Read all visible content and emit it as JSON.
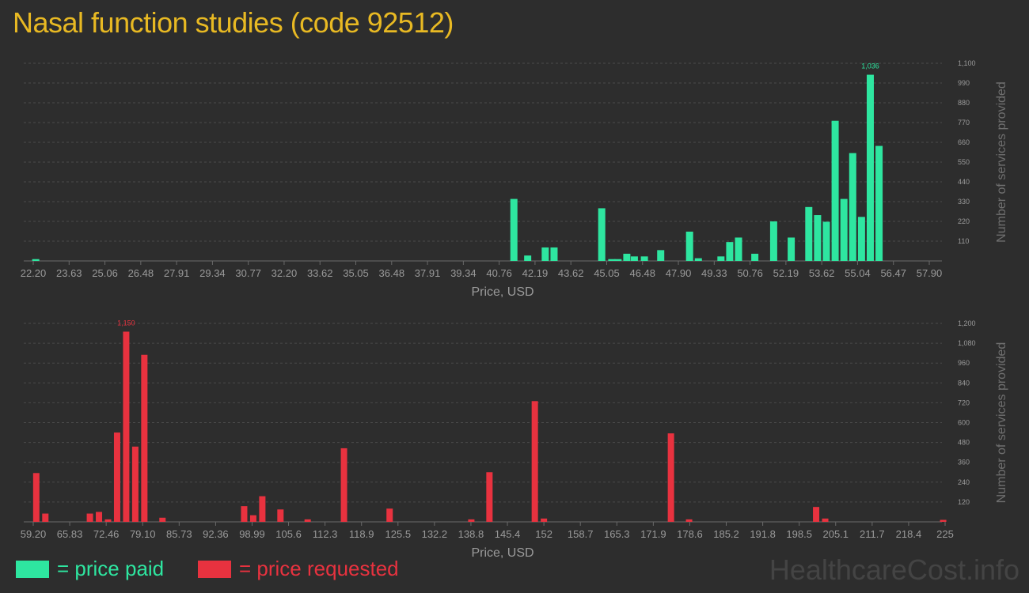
{
  "title": "Nasal function studies (code 92512)",
  "colors": {
    "paid": "#2ee6a0",
    "requested": "#e8323f",
    "title": "#e8b923",
    "background": "#2d2d2d",
    "grid": "#4a4a4a",
    "text": "#9a9a9a"
  },
  "legend": {
    "paid_label": "= price paid",
    "requested_label": "= price requested"
  },
  "watermark": "HealthcareCost.info",
  "chart_data": [
    {
      "type": "bar",
      "name": "price paid",
      "color": "#2ee6a0",
      "xlabel": "Price, USD",
      "ylabel": "Number of services provided",
      "x_range": [
        22.2,
        57.9
      ],
      "x_ticks": [
        "22.20",
        "23.63",
        "25.06",
        "26.48",
        "27.91",
        "29.34",
        "30.77",
        "32.20",
        "33.62",
        "35.05",
        "36.48",
        "37.91",
        "39.34",
        "40.76",
        "42.19",
        "43.62",
        "45.05",
        "46.48",
        "47.90",
        "49.33",
        "50.76",
        "52.19",
        "53.62",
        "55.04",
        "56.47",
        "57.90"
      ],
      "y_ticks": [
        "110",
        "220",
        "330",
        "440",
        "550",
        "660",
        "770",
        "880",
        "990",
        "1,100"
      ],
      "ylim": [
        0,
        1100
      ],
      "grid": true,
      "max_label": "1,036",
      "bars": [
        {
          "x": 22.3,
          "value": 10
        },
        {
          "x": 41.35,
          "value": 345
        },
        {
          "x": 41.9,
          "value": 30
        },
        {
          "x": 42.6,
          "value": 75
        },
        {
          "x": 42.95,
          "value": 75
        },
        {
          "x": 44.85,
          "value": 293
        },
        {
          "x": 45.25,
          "value": 10
        },
        {
          "x": 45.5,
          "value": 10
        },
        {
          "x": 45.85,
          "value": 40
        },
        {
          "x": 46.15,
          "value": 25
        },
        {
          "x": 46.55,
          "value": 25
        },
        {
          "x": 47.2,
          "value": 60
        },
        {
          "x": 48.35,
          "value": 163
        },
        {
          "x": 48.7,
          "value": 15
        },
        {
          "x": 49.6,
          "value": 25
        },
        {
          "x": 49.95,
          "value": 105
        },
        {
          "x": 50.3,
          "value": 130
        },
        {
          "x": 50.95,
          "value": 40
        },
        {
          "x": 51.7,
          "value": 220
        },
        {
          "x": 52.4,
          "value": 130
        },
        {
          "x": 53.1,
          "value": 300
        },
        {
          "x": 53.45,
          "value": 255
        },
        {
          "x": 53.8,
          "value": 218
        },
        {
          "x": 54.15,
          "value": 780
        },
        {
          "x": 54.5,
          "value": 345
        },
        {
          "x": 54.85,
          "value": 600
        },
        {
          "x": 55.2,
          "value": 245
        },
        {
          "x": 55.55,
          "value": 1036
        },
        {
          "x": 55.9,
          "value": 640
        }
      ]
    },
    {
      "type": "bar",
      "name": "price requested",
      "color": "#e8323f",
      "xlabel": "Price, USD",
      "ylabel": "Number of services provided",
      "x_range": [
        59.2,
        225
      ],
      "x_ticks": [
        "59.20",
        "65.83",
        "72.46",
        "79.10",
        "85.73",
        "92.36",
        "98.99",
        "105.6",
        "112.3",
        "118.9",
        "125.5",
        "132.2",
        "138.8",
        "145.4",
        "152",
        "158.7",
        "165.3",
        "171.9",
        "178.6",
        "185.2",
        "191.8",
        "198.5",
        "205.1",
        "211.7",
        "218.4",
        "225"
      ],
      "y_ticks": [
        "120",
        "240",
        "360",
        "480",
        "600",
        "720",
        "840",
        "960",
        "1,080",
        "1,200"
      ],
      "ylim": [
        0,
        1200
      ],
      "grid": true,
      "max_label": "1,150",
      "bars": [
        {
          "x": 59.75,
          "value": 295
        },
        {
          "x": 61.4,
          "value": 50
        },
        {
          "x": 69.5,
          "value": 50
        },
        {
          "x": 71.15,
          "value": 60
        },
        {
          "x": 72.8,
          "value": 15
        },
        {
          "x": 74.45,
          "value": 540
        },
        {
          "x": 76.1,
          "value": 1150
        },
        {
          "x": 77.75,
          "value": 455
        },
        {
          "x": 79.4,
          "value": 1010
        },
        {
          "x": 82.7,
          "value": 25
        },
        {
          "x": 97.55,
          "value": 95
        },
        {
          "x": 99.2,
          "value": 40
        },
        {
          "x": 100.85,
          "value": 155
        },
        {
          "x": 104.15,
          "value": 75
        },
        {
          "x": 109.1,
          "value": 15
        },
        {
          "x": 115.7,
          "value": 445
        },
        {
          "x": 124.0,
          "value": 80
        },
        {
          "x": 138.85,
          "value": 15
        },
        {
          "x": 142.15,
          "value": 300
        },
        {
          "x": 150.4,
          "value": 730
        },
        {
          "x": 152.05,
          "value": 20
        },
        {
          "x": 175.15,
          "value": 535
        },
        {
          "x": 178.45,
          "value": 15
        },
        {
          "x": 201.55,
          "value": 90
        },
        {
          "x": 203.2,
          "value": 20
        },
        {
          "x": 224.65,
          "value": 12
        }
      ]
    }
  ]
}
